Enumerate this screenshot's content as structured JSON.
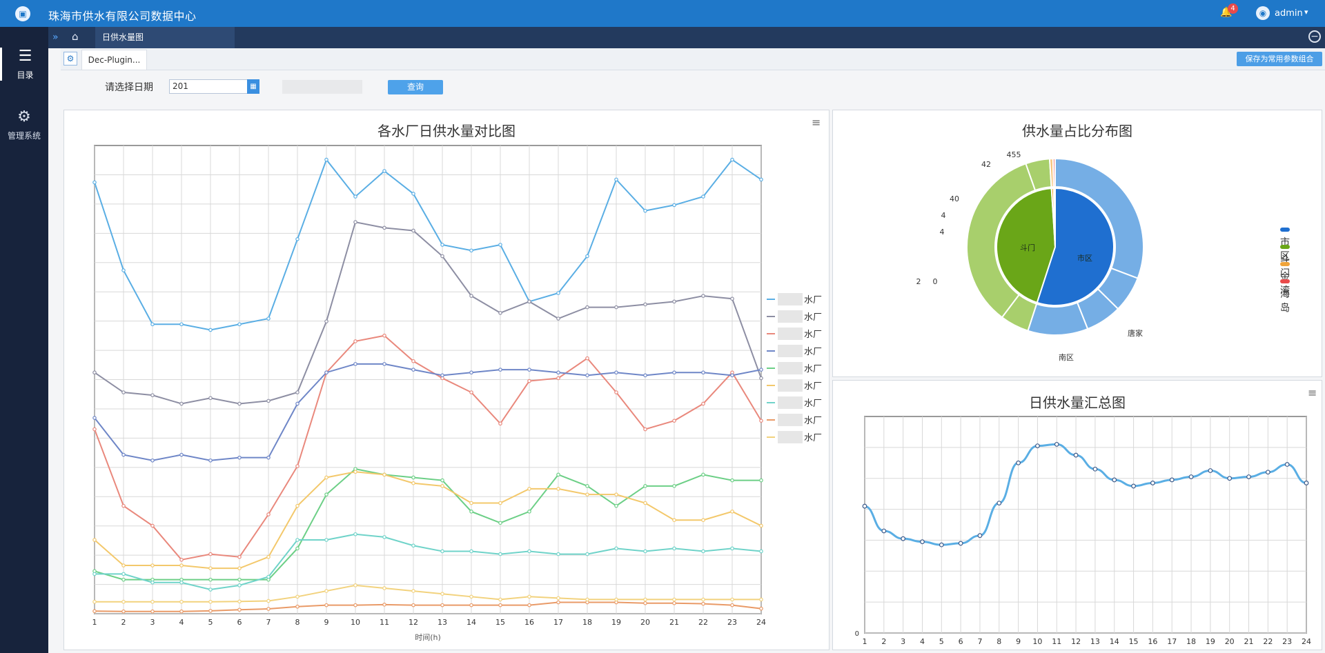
{
  "header": {
    "title": "珠海市供水有限公司数据中心",
    "notification_count": "4",
    "user": "admin"
  },
  "sidebar": {
    "items": [
      {
        "label": "目录",
        "icon": "list-icon"
      },
      {
        "label": "管理系统",
        "icon": "gear-icon"
      }
    ]
  },
  "tabs": {
    "active": "日供水量图"
  },
  "subbar": {
    "plugin_tab": "Dec-Plugin...",
    "save_button": "保存为常用参数组合"
  },
  "query": {
    "date_label": "请选择日期",
    "date_value": "201",
    "button": "查询"
  },
  "charts": {
    "main_title": "各水厂日供水量对比图",
    "pie_title": "供水量占比分布图",
    "summary_title": "日供水量汇总图",
    "main_xlabel": "时间(h)"
  },
  "colors": {
    "brand": "#1f78c9",
    "sidebar": "#17233c",
    "line_blue": "#5aaee4",
    "line_gray": "#8d8ea3",
    "line_red": "#e9887c",
    "line_steel": "#6e86c7",
    "line_green": "#6ccf86",
    "line_yellow": "#f3c86b",
    "line_teal": "#6fd3c9",
    "line_orange": "#e99a67",
    "line_lightyellow": "#f2d27d"
  },
  "chart_data": [
    {
      "type": "line",
      "title": "各水厂日供水量对比图",
      "xlabel": "时间(h)",
      "x": [
        1,
        2,
        3,
        4,
        5,
        6,
        7,
        8,
        9,
        10,
        11,
        12,
        13,
        14,
        15,
        16,
        17,
        18,
        19,
        20,
        21,
        22,
        23,
        24
      ],
      "series": [
        {
          "name": "水厂",
          "color": "#5aaee4",
          "values": [
            15200,
            12100,
            10200,
            10200,
            10000,
            10200,
            10400,
            13200,
            16000,
            14700,
            15600,
            14800,
            13000,
            12800,
            13000,
            11000,
            11300,
            12600,
            15300,
            14200,
            14400,
            14700,
            16000,
            15300
          ]
        },
        {
          "name": "水厂",
          "color": "#8d8ea3",
          "values": [
            8500,
            7800,
            7700,
            7400,
            7600,
            7400,
            7500,
            7800,
            10300,
            13800,
            13600,
            13500,
            12600,
            11200,
            10600,
            11000,
            10400,
            10800,
            10800,
            10900,
            11000,
            11200,
            11100,
            8300
          ]
        },
        {
          "name": "水厂",
          "color": "#e9887c",
          "values": [
            6500,
            3800,
            3100,
            1900,
            2100,
            2000,
            3500,
            5200,
            8500,
            9600,
            9800,
            8900,
            8300,
            7800,
            6700,
            8200,
            8300,
            9000,
            7800,
            6500,
            6800,
            7400,
            8500,
            6800
          ]
        },
        {
          "name": "水厂",
          "color": "#6e86c7",
          "values": [
            6900,
            5600,
            5400,
            5600,
            5400,
            5500,
            5500,
            7400,
            8500,
            8800,
            8800,
            8600,
            8400,
            8500,
            8600,
            8600,
            8500,
            8400,
            8500,
            8400,
            8500,
            8500,
            8400,
            8600
          ]
        },
        {
          "name": "水厂",
          "color": "#6ccf86",
          "values": [
            1500,
            1200,
            1200,
            1200,
            1200,
            1200,
            1200,
            2300,
            4200,
            5100,
            4900,
            4800,
            4700,
            3600,
            3200,
            3600,
            4900,
            4500,
            3800,
            4500,
            4500,
            4900,
            4700,
            4700
          ]
        },
        {
          "name": "水厂",
          "color": "#f3c86b",
          "values": [
            2600,
            1700,
            1700,
            1700,
            1600,
            1600,
            2000,
            3800,
            4800,
            5000,
            4900,
            4600,
            4500,
            3900,
            3900,
            4400,
            4400,
            4200,
            4200,
            3900,
            3300,
            3300,
            3600,
            3100
          ]
        },
        {
          "name": "水厂",
          "color": "#6fd3c9",
          "values": [
            1400,
            1400,
            1100,
            1100,
            850,
            1000,
            1300,
            2600,
            2600,
            2800,
            2700,
            2400,
            2200,
            2200,
            2100,
            2200,
            2100,
            2100,
            2300,
            2200,
            2300,
            2200,
            2300,
            2200
          ]
        },
        {
          "name": "水厂",
          "color": "#e99a67",
          "values": [
            90,
            80,
            80,
            80,
            100,
            140,
            170,
            250,
            300,
            300,
            320,
            300,
            300,
            300,
            300,
            300,
            400,
            400,
            400,
            370,
            370,
            350,
            300,
            180
          ]
        },
        {
          "name": "水厂",
          "color": "#f2d27d",
          "values": [
            420,
            420,
            420,
            420,
            420,
            430,
            450,
            600,
            800,
            1000,
            900,
            800,
            700,
            600,
            500,
            600,
            550,
            500,
            500,
            500,
            500,
            500,
            500,
            500
          ]
        }
      ]
    },
    {
      "type": "pie",
      "title": "供水量占比分布图",
      "legend": [
        "市区",
        "斗门",
        "金湾",
        "海岛"
      ],
      "legend_position": "right",
      "inner": [
        {
          "name": "市区",
          "value": 55,
          "color": "#1f6fd0"
        },
        {
          "name": "斗门",
          "value": 44,
          "color": "#6aa618"
        },
        {
          "name": "金湾",
          "value": 0.6,
          "color": "#f0a43a"
        },
        {
          "name": "海岛",
          "value": 0.4,
          "color": "#e94a4a"
        }
      ],
      "outer_labels": [
        "455",
        "42",
        "40",
        "4",
        "4",
        "2",
        "0",
        "唐家",
        "南区"
      ]
    },
    {
      "type": "line",
      "title": "日供水量汇总图",
      "x": [
        1,
        2,
        3,
        4,
        5,
        6,
        7,
        8,
        9,
        10,
        11,
        12,
        13,
        14,
        15,
        16,
        17,
        18,
        19,
        20,
        21,
        22,
        23,
        24
      ],
      "series": [
        {
          "name": "汇总",
          "color": "#5aaee4",
          "values": [
            41000,
            33000,
            30500,
            29500,
            28500,
            29000,
            31500,
            42000,
            55000,
            60500,
            61000,
            57500,
            53000,
            49500,
            47500,
            48500,
            49500,
            50500,
            52500,
            50000,
            50500,
            52000,
            54500,
            48500
          ]
        }
      ],
      "ylim": [
        0,
        70000
      ]
    }
  ]
}
